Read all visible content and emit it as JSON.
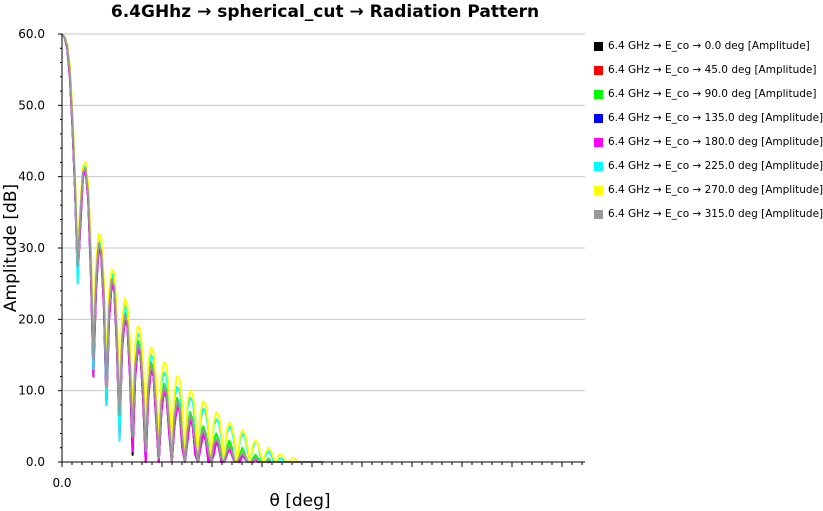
{
  "chart_data": {
    "type": "line",
    "title": "6.4GHhz → spherical_cut → Radiation Pattern",
    "xlabel": "θ [deg]",
    "ylabel": "Amplitude [dB]",
    "ylim": [
      0,
      60
    ],
    "yticks": [
      "0.0",
      "10.0",
      "20.0",
      "30.0",
      "40.0",
      "50.0",
      "60.0"
    ],
    "xticks": [
      "0.0"
    ],
    "grid": "horizontal",
    "legend_position": "right",
    "x": [
      0.0,
      0.5,
      1.0,
      1.5,
      2.0,
      2.5,
      3.0,
      3.5,
      4.0,
      4.5,
      5.0,
      5.5,
      6.0,
      6.5,
      7.0,
      7.5,
      8.0,
      8.5,
      9.0,
      9.5,
      10.0,
      10.5,
      11.0,
      11.5,
      12.0,
      12.5,
      13.0,
      13.5,
      14.0,
      14.5,
      15.0,
      15.5,
      16.0,
      16.5,
      17.0,
      17.5,
      18.0,
      18.5,
      19.0,
      19.5,
      20.0,
      20.5,
      21.0,
      21.5,
      22.0,
      22.5,
      23.0,
      23.5,
      24.0,
      24.5,
      25.0,
      25.5,
      26.0,
      26.5,
      27.0,
      27.5,
      28.0,
      28.5,
      29.0,
      29.5,
      30.0,
      30.5,
      31.0,
      31.5,
      32.0,
      32.5,
      33.0,
      33.5,
      34.0,
      34.5,
      35.0,
      35.5,
      36.0,
      36.5,
      37.0,
      37.5,
      38.0,
      38.5,
      39.0,
      39.5,
      40.0,
      40.5,
      41.0,
      41.5,
      42.0,
      42.5,
      43.0,
      43.5,
      44.0,
      44.5,
      45.0,
      45.5,
      46.0,
      46.5,
      47.0,
      47.5,
      48.0,
      48.5,
      49.0,
      49.5,
      50.0
    ],
    "series": [
      {
        "name": "6.4 GHz → E_co → 0.0 deg [Amplitude]",
        "color": "#000000",
        "values": [
          60.0,
          59.5,
          58.0,
          54.0,
          47.0,
          38.0,
          26.0,
          33.0,
          40.0,
          41.0,
          37.0,
          27.0,
          12.0,
          24.0,
          30.0,
          29.0,
          22.0,
          8.0,
          20.0,
          25.0,
          24.0,
          16.0,
          4.0,
          16.0,
          20.0,
          19.0,
          12.0,
          1.0,
          12.0,
          16.0,
          15.0,
          9.0,
          0.0,
          9.0,
          13.0,
          12.0,
          6.0,
          0.0,
          7.0,
          10.0,
          9.0,
          4.0,
          0.0,
          5.0,
          8.0,
          7.0,
          2.0,
          0.0,
          3.0,
          6.0,
          5.0,
          1.0,
          0.0,
          2.0,
          4.0,
          3.0,
          0.0,
          0.0,
          1.0,
          3.0,
          2.0,
          0.0,
          0.0,
          1.0,
          2.0,
          1.0,
          0.0,
          0.0,
          0.0,
          1.0,
          0.5,
          0.0,
          0.0,
          0.0,
          0.5,
          0.0,
          0.0,
          0.0,
          0.0,
          0.0,
          0.0,
          0.0,
          0.0,
          0.0,
          0.0,
          0.0,
          0.0,
          0.0,
          0.0,
          0.0,
          0.0,
          0.0,
          0.0,
          0.0,
          0.0,
          0.0,
          0.0,
          0.0,
          0.0,
          0.0,
          0.0
        ]
      },
      {
        "name": "6.4 GHz → E_co → 45.0 deg [Amplitude]",
        "color": "#ff0000",
        "values": [
          60.0,
          59.5,
          58.2,
          54.5,
          47.5,
          38.5,
          27.0,
          34.0,
          40.5,
          41.2,
          37.5,
          28.0,
          14.0,
          25.0,
          30.5,
          29.5,
          23.0,
          10.0,
          21.0,
          25.5,
          24.5,
          17.0,
          6.0,
          17.0,
          20.5,
          19.5,
          13.0,
          3.0,
          13.0,
          16.5,
          15.5,
          10.0,
          1.0,
          10.0,
          13.5,
          12.5,
          7.0,
          0.0,
          8.0,
          10.5,
          9.5,
          5.0,
          0.0,
          6.0,
          8.5,
          7.5,
          3.0,
          0.0,
          4.0,
          6.5,
          5.5,
          2.0,
          0.0,
          3.0,
          4.5,
          3.5,
          1.0,
          0.0,
          2.0,
          3.0,
          2.5,
          0.0,
          0.0,
          1.0,
          2.0,
          1.5,
          0.0,
          0.0,
          0.5,
          1.0,
          0.5,
          0.0,
          0.0,
          0.0,
          0.5,
          0.0,
          0.0,
          0.0,
          0.0,
          0.0,
          0.0,
          0.0,
          0.0,
          0.0,
          0.0,
          0.0,
          0.0,
          0.0,
          0.0,
          0.0,
          0.0,
          0.0,
          0.0,
          0.0,
          0.0,
          0.0,
          0.0,
          0.0,
          0.0,
          0.0,
          0.0
        ]
      },
      {
        "name": "6.4 GHz → E_co → 90.0 deg [Amplitude]",
        "color": "#00ff00",
        "values": [
          60.0,
          59.6,
          58.4,
          55.0,
          48.0,
          39.0,
          28.0,
          35.0,
          41.0,
          41.5,
          38.0,
          29.0,
          15.0,
          26.0,
          31.0,
          30.0,
          24.0,
          11.0,
          22.0,
          26.0,
          25.0,
          18.0,
          7.0,
          18.0,
          21.0,
          20.0,
          14.0,
          4.0,
          14.0,
          17.0,
          16.0,
          11.0,
          2.0,
          11.0,
          14.0,
          13.0,
          8.0,
          1.0,
          9.0,
          11.0,
          10.0,
          6.0,
          0.0,
          7.0,
          9.0,
          8.0,
          4.0,
          0.0,
          5.0,
          7.0,
          6.0,
          3.0,
          0.0,
          4.0,
          5.0,
          4.0,
          2.0,
          0.0,
          3.0,
          4.0,
          3.0,
          1.0,
          0.0,
          2.0,
          3.0,
          2.0,
          0.0,
          0.0,
          1.0,
          2.0,
          1.0,
          0.0,
          0.0,
          0.5,
          1.0,
          0.5,
          0.0,
          0.0,
          0.0,
          0.5,
          0.0,
          0.0,
          0.0,
          0.0,
          0.0,
          0.0,
          0.0,
          0.0,
          0.0,
          0.0,
          0.0,
          0.0,
          0.0,
          0.0,
          0.0,
          0.0,
          0.0,
          0.0,
          0.0,
          0.0,
          0.0
        ]
      },
      {
        "name": "6.4 GHz → E_co → 135.0 deg [Amplitude]",
        "color": "#0000ff",
        "values": [
          60.0,
          59.5,
          58.1,
          54.2,
          47.2,
          38.2,
          26.5,
          33.5,
          40.2,
          41.0,
          37.2,
          27.5,
          13.0,
          24.5,
          30.2,
          29.2,
          22.5,
          9.0,
          20.5,
          25.2,
          24.2,
          16.5,
          5.0,
          16.5,
          20.2,
          19.2,
          12.5,
          2.0,
          12.5,
          16.2,
          15.2,
          9.5,
          0.5,
          9.5,
          13.2,
          12.2,
          6.5,
          0.0,
          7.5,
          10.2,
          9.2,
          4.5,
          0.0,
          5.5,
          8.2,
          7.2,
          2.5,
          0.0,
          3.5,
          6.2,
          5.2,
          1.5,
          0.0,
          2.5,
          4.2,
          3.2,
          0.5,
          0.0,
          1.5,
          3.0,
          2.2,
          0.0,
          0.0,
          1.0,
          2.0,
          1.2,
          0.0,
          0.0,
          0.2,
          1.0,
          0.5,
          0.0,
          0.0,
          0.0,
          0.5,
          0.0,
          0.0,
          0.0,
          0.0,
          0.0,
          0.0,
          0.0,
          0.0,
          0.0,
          0.0,
          0.0,
          0.0,
          0.0,
          0.0,
          0.0,
          0.0,
          0.0,
          0.0,
          0.0,
          0.0,
          0.0,
          0.0,
          0.0,
          0.0,
          0.0,
          0.0
        ]
      },
      {
        "name": "6.4 GHz → E_co → 180.0 deg [Amplitude]",
        "color": "#ff00ff",
        "values": [
          60.0,
          59.5,
          58.0,
          54.0,
          47.0,
          38.0,
          26.0,
          33.0,
          40.0,
          40.8,
          37.0,
          27.0,
          12.0,
          24.0,
          29.8,
          29.0,
          22.0,
          8.0,
          20.0,
          25.0,
          24.0,
          16.0,
          3.0,
          16.0,
          20.0,
          19.0,
          12.0,
          1.5,
          12.0,
          16.0,
          15.0,
          9.0,
          0.0,
          9.0,
          13.0,
          12.0,
          6.0,
          0.0,
          7.0,
          10.0,
          9.0,
          4.0,
          0.0,
          5.0,
          8.0,
          7.0,
          2.0,
          0.0,
          3.0,
          6.0,
          5.0,
          1.0,
          0.0,
          2.0,
          4.0,
          3.0,
          0.0,
          0.0,
          1.0,
          3.0,
          2.0,
          0.0,
          0.0,
          1.0,
          2.0,
          1.0,
          0.0,
          0.0,
          0.0,
          1.0,
          0.5,
          0.0,
          0.0,
          0.0,
          0.5,
          0.0,
          0.0,
          0.0,
          0.0,
          0.0,
          0.0,
          0.0,
          0.0,
          0.0,
          0.0,
          0.0,
          0.0,
          0.0,
          0.0,
          0.0,
          0.0,
          0.0,
          0.0,
          0.0,
          0.0,
          0.0,
          0.0,
          0.0,
          0.0,
          0.0,
          0.0
        ]
      },
      {
        "name": "6.4 GHz → E_co → 225.0 deg [Amplitude]",
        "color": "#00ffff",
        "values": [
          60.0,
          59.6,
          58.5,
          55.2,
          48.5,
          39.5,
          25.0,
          35.5,
          41.0,
          41.5,
          38.5,
          30.0,
          13.0,
          27.0,
          31.0,
          30.5,
          25.0,
          8.0,
          23.0,
          26.5,
          25.5,
          19.0,
          3.0,
          19.0,
          22.0,
          21.0,
          15.5,
          5.0,
          15.5,
          18.0,
          17.5,
          13.0,
          3.0,
          13.0,
          15.0,
          14.5,
          10.5,
          2.0,
          11.0,
          12.5,
          12.0,
          8.5,
          1.0,
          9.0,
          10.5,
          10.0,
          7.0,
          0.5,
          7.5,
          9.0,
          8.5,
          5.5,
          0.0,
          6.0,
          7.5,
          7.0,
          4.5,
          0.0,
          5.0,
          6.0,
          5.5,
          3.5,
          0.0,
          4.0,
          5.0,
          4.5,
          2.5,
          0.0,
          3.0,
          4.0,
          3.5,
          1.5,
          0.0,
          2.0,
          3.0,
          2.5,
          0.5,
          0.0,
          1.0,
          1.5,
          1.0,
          0.0,
          0.0,
          0.5,
          0.5,
          0.0,
          0.0,
          0.0,
          0.0,
          0.0,
          0.0,
          0.0,
          0.0,
          0.0,
          0.0,
          0.0,
          0.0,
          0.0,
          0.0,
          0.0,
          0.0
        ]
      },
      {
        "name": "6.4 GHz → E_co → 270.0 deg [Amplitude]",
        "color": "#ffff00",
        "values": [
          60.0,
          59.6,
          58.6,
          55.5,
          49.0,
          40.0,
          29.0,
          36.0,
          41.5,
          42.0,
          39.0,
          30.5,
          17.0,
          27.5,
          32.0,
          31.5,
          25.5,
          13.0,
          24.0,
          27.0,
          26.5,
          20.5,
          9.0,
          20.0,
          23.0,
          22.0,
          17.0,
          6.0,
          16.5,
          19.0,
          18.5,
          14.0,
          4.0,
          14.0,
          16.0,
          15.5,
          11.5,
          3.0,
          12.0,
          14.0,
          13.5,
          9.5,
          2.0,
          10.0,
          12.0,
          11.5,
          8.0,
          1.0,
          8.5,
          10.0,
          9.5,
          6.5,
          0.5,
          7.0,
          8.5,
          8.0,
          5.0,
          0.0,
          5.5,
          7.0,
          6.5,
          4.0,
          0.0,
          4.5,
          5.5,
          5.0,
          3.0,
          0.0,
          3.5,
          4.5,
          4.0,
          2.0,
          0.0,
          2.5,
          3.0,
          2.5,
          1.0,
          0.0,
          1.5,
          2.0,
          1.5,
          0.5,
          0.0,
          1.0,
          1.0,
          0.5,
          0.0,
          0.0,
          0.5,
          0.5,
          0.0,
          0.0,
          0.0,
          0.0,
          0.0,
          0.0,
          0.0,
          0.0,
          0.0,
          0.0,
          0.0
        ]
      },
      {
        "name": "6.4 GHz → E_co → 315.0 deg [Amplitude]",
        "color": "#999999",
        "values": [
          60.0,
          59.5,
          58.3,
          54.6,
          47.8,
          38.8,
          27.5,
          34.5,
          40.6,
          41.2,
          37.6,
          28.5,
          14.5,
          25.5,
          30.6,
          29.6,
          23.5,
          10.5,
          21.5,
          25.6,
          24.6,
          17.5,
          6.5,
          17.5,
          20.6,
          19.6,
          13.5,
          3.5,
          13.5,
          16.6,
          15.6,
          10.5,
          1.5,
          10.5,
          13.6,
          12.6,
          7.5,
          0.5,
          8.5,
          10.6,
          9.6,
          5.5,
          0.0,
          6.5,
          8.6,
          7.6,
          3.5,
          0.0,
          4.5,
          6.6,
          5.6,
          2.5,
          0.0,
          3.5,
          4.6,
          3.6,
          1.5,
          0.0,
          2.5,
          3.2,
          2.6,
          0.5,
          0.0,
          1.5,
          2.2,
          1.6,
          0.0,
          0.0,
          0.8,
          1.2,
          0.8,
          0.0,
          0.0,
          0.2,
          0.6,
          0.2,
          0.0,
          0.0,
          0.0,
          0.2,
          0.0,
          0.0,
          0.0,
          0.0,
          0.0,
          0.0,
          0.0,
          0.0,
          0.0,
          0.0,
          0.0,
          0.0,
          0.0,
          0.0,
          0.0,
          0.0,
          0.0,
          0.0,
          0.0,
          0.0,
          0.0
        ]
      }
    ]
  }
}
